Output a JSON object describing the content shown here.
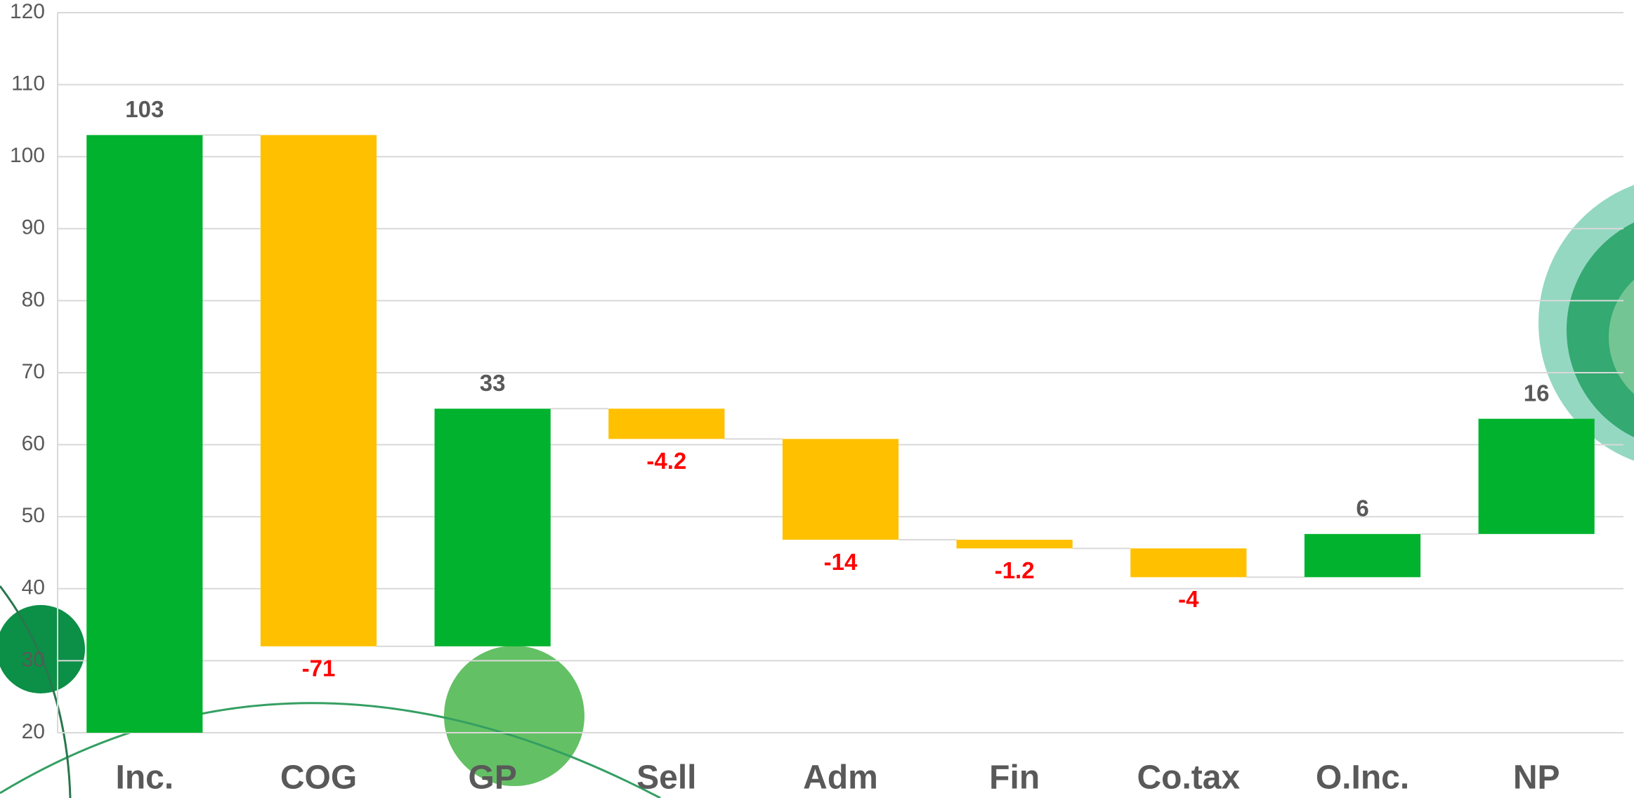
{
  "chart_data": {
    "type": "waterfall",
    "categories": [
      "Inc.",
      "COG",
      "GP",
      "Sell",
      "Adm",
      "Fin",
      "Co.tax",
      "O.Inc.",
      "NP"
    ],
    "values": [
      103,
      -71,
      33,
      -4.2,
      -14,
      -1.2,
      -4,
      6,
      16
    ],
    "positive_color": "#00b22d",
    "negative_color": "#ffc000",
    "ylim": [
      20,
      120
    ],
    "yticks": [
      20,
      30,
      40,
      50,
      60,
      70,
      80,
      90,
      100,
      110,
      120
    ],
    "grid": true
  }
}
